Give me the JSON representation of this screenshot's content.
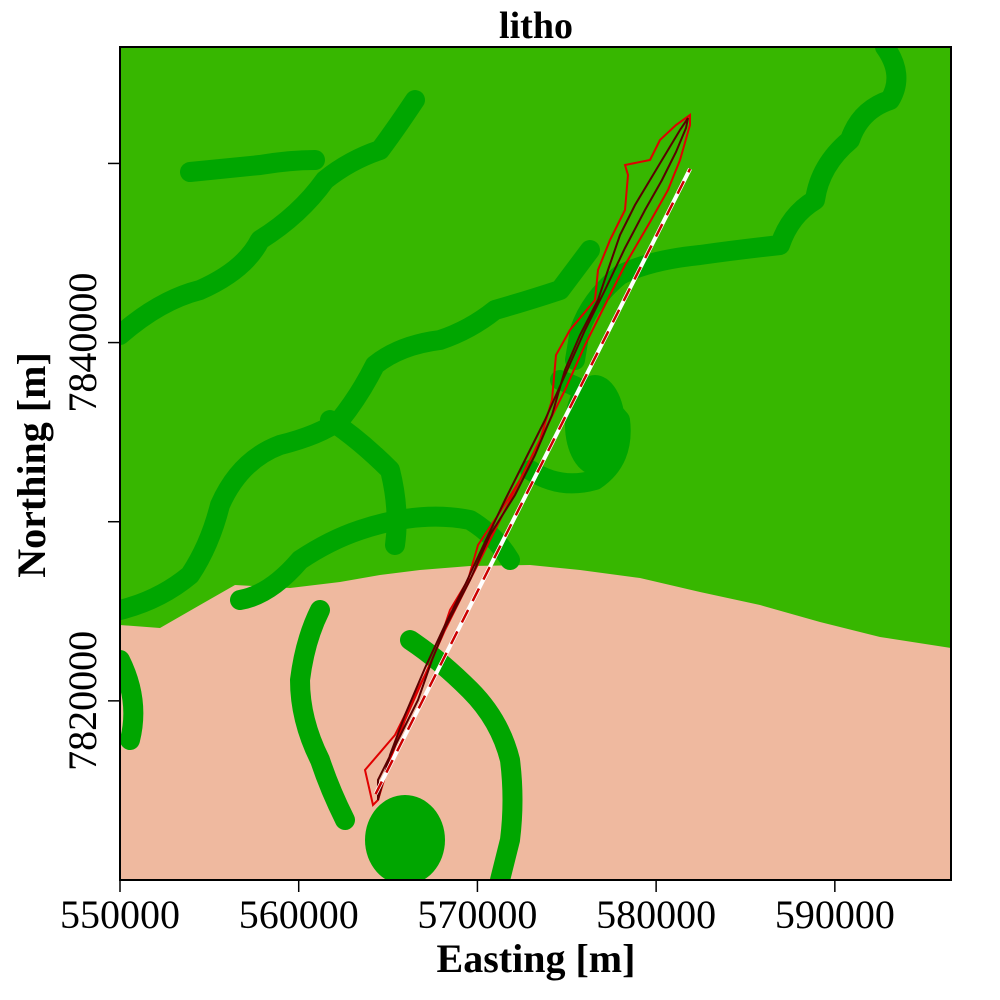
{
  "figure": {
    "title": "litho",
    "xlabel": "Easting [m]",
    "ylabel": "Northing [m]"
  },
  "map": {
    "x_range": [
      550000,
      596500
    ],
    "y_range": [
      7810000,
      7856500
    ],
    "x_ticks": [
      {
        "value": 550000,
        "label": "550000"
      },
      {
        "value": 560000,
        "label": "560000"
      },
      {
        "value": 570000,
        "label": "570000"
      },
      {
        "value": 580000,
        "label": "580000"
      },
      {
        "value": 590000,
        "label": "590000"
      }
    ],
    "y_ticks": [
      {
        "value": 7820000,
        "label": "7820000"
      },
      {
        "value": 7830000,
        "label": ""
      },
      {
        "value": 7840000,
        "label": "7840000"
      },
      {
        "value": 7850000,
        "label": ""
      }
    ],
    "colors": {
      "unit_a": "#37b700",
      "unit_b": "#00a600",
      "unit_c": "#efb99f",
      "contour_outer": "#e00000",
      "contour_inner": "#5a0000",
      "profile_line": "#ffffff",
      "profile_dash": "#cc0000"
    },
    "profile": {
      "start": [
        564300,
        7814800
      ],
      "end": [
        581900,
        7849700
      ]
    }
  }
}
